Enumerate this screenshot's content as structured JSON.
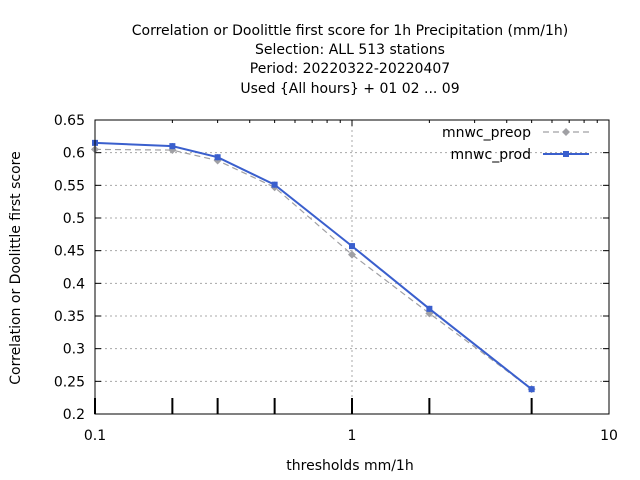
{
  "chart_data": {
    "type": "line",
    "title_lines": [
      "Correlation or Doolittle first score  for 1h Precipitation (mm/1h)",
      "Selection: ALL     513 stations",
      "Period: 20220322-20220407",
      "Used {All hours} + 01 02 ... 09"
    ],
    "xlabel": "thresholds mm/1h",
    "ylabel": "Correlation or Doolittle first score",
    "x_scale": "log",
    "xlim": [
      0.1,
      10
    ],
    "ylim": [
      0.2,
      0.65
    ],
    "x_ticks": [
      0.1,
      1,
      10
    ],
    "x_tick_labels": [
      "0.1",
      "1",
      "10"
    ],
    "y_ticks": [
      0.2,
      0.25,
      0.3,
      0.35,
      0.4,
      0.45,
      0.5,
      0.55,
      0.6,
      0.65
    ],
    "y_tick_labels": [
      "0.2",
      "0.25",
      "0.3",
      "0.35",
      "0.4",
      "0.45",
      "0.5",
      "0.55",
      "0.6",
      "0.65"
    ],
    "threshold_marks": [
      0.1,
      0.2,
      0.3,
      0.5,
      1,
      2,
      5
    ],
    "grid": true,
    "legend_position": "top-right",
    "series": [
      {
        "name": "mnwc_preop",
        "color": "#a0a0a4",
        "dash": "dashed",
        "marker": "diamond",
        "x": [
          0.1,
          0.2,
          0.3,
          0.5,
          1,
          2,
          5
        ],
        "y": [
          0.605,
          0.604,
          0.588,
          0.547,
          0.444,
          0.354,
          0.238
        ]
      },
      {
        "name": "mnwc_prod",
        "color": "#3a5fcd",
        "dash": "solid",
        "marker": "square",
        "x": [
          0.1,
          0.2,
          0.3,
          0.5,
          1,
          2,
          5
        ],
        "y": [
          0.615,
          0.61,
          0.593,
          0.551,
          0.457,
          0.361,
          0.238
        ]
      }
    ]
  }
}
